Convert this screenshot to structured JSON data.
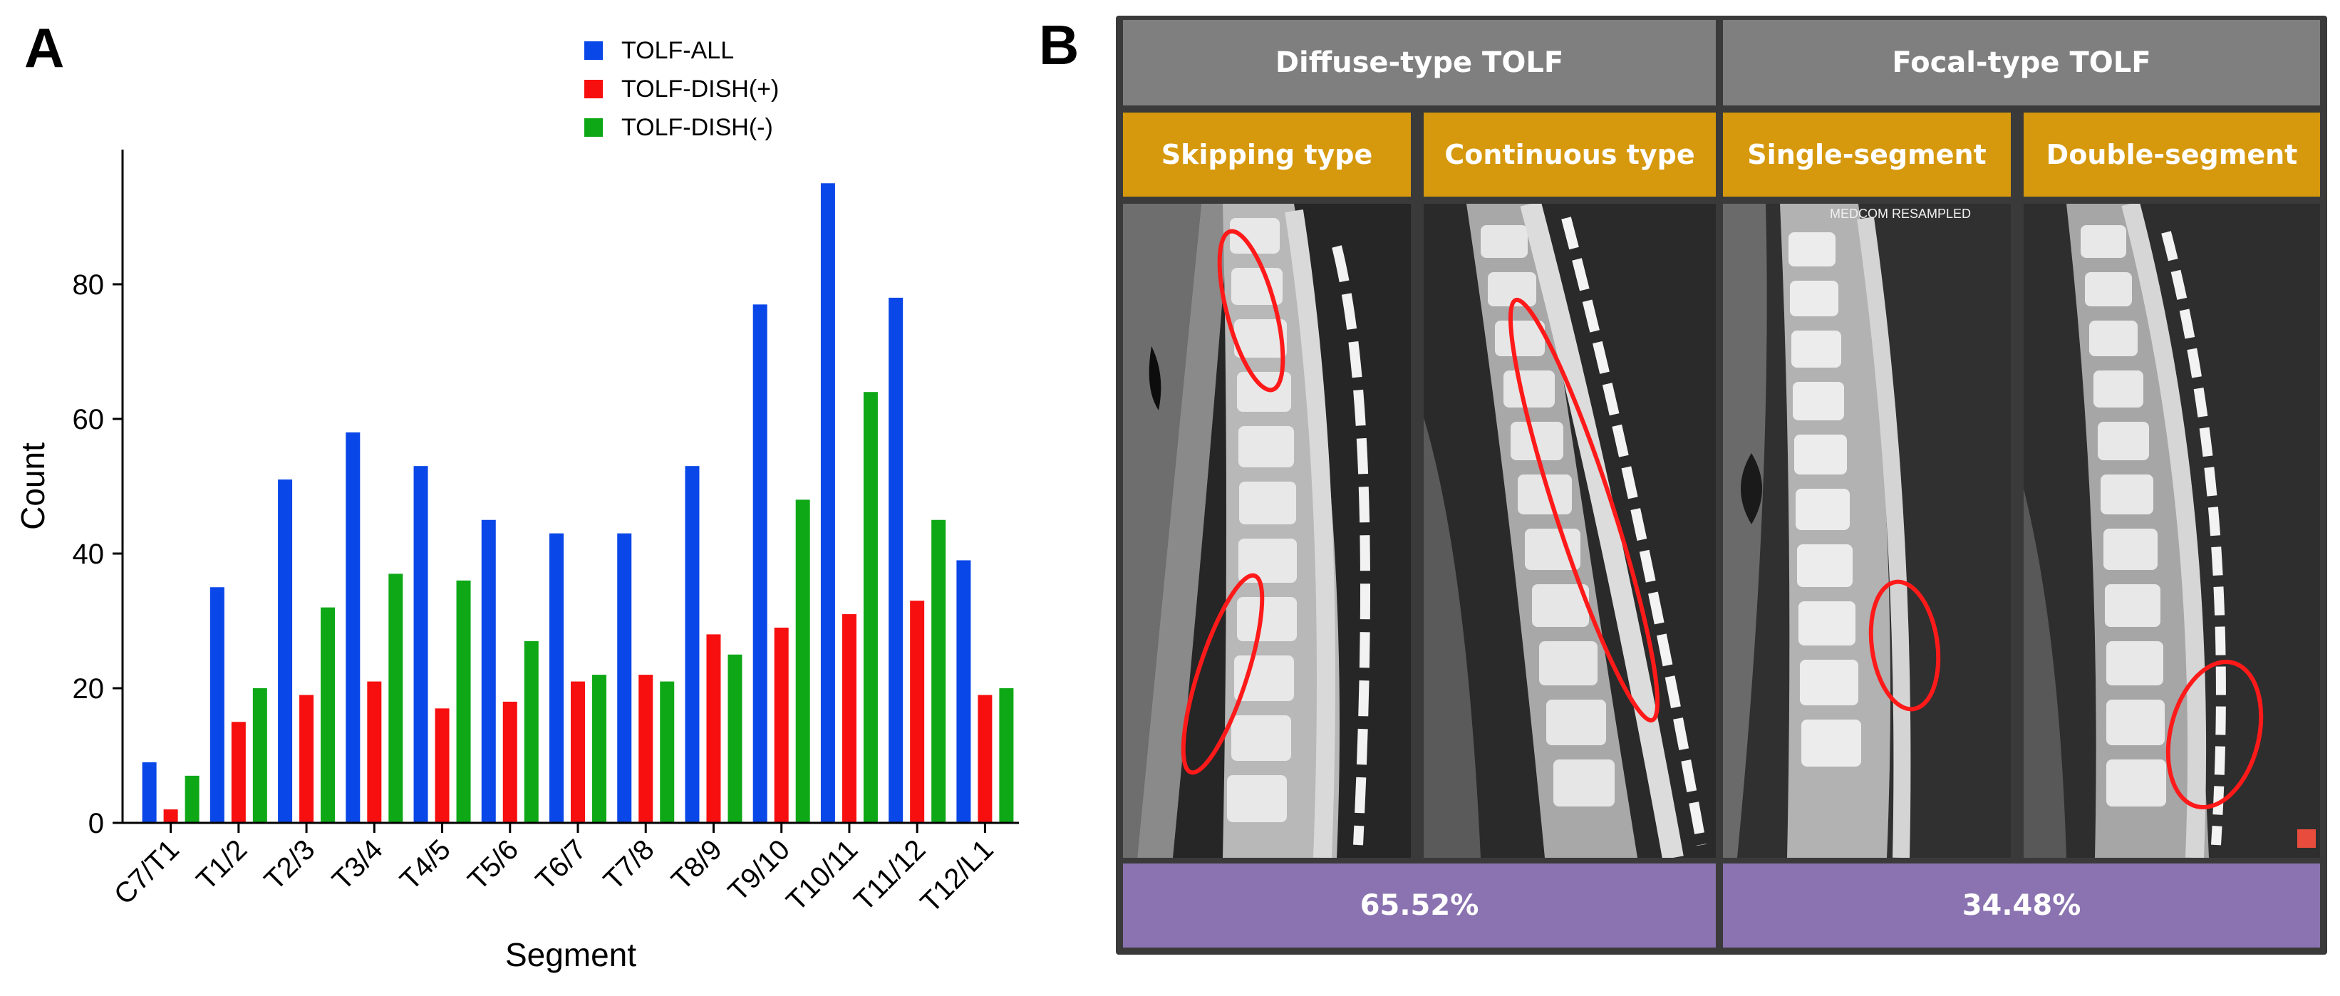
{
  "panel_a_label": "A",
  "panel_b_label": "B",
  "chart_data": {
    "type": "bar",
    "title": "",
    "xlabel": "Segment",
    "ylabel": "Count",
    "ylim": [
      0,
      100
    ],
    "yticks": [
      0,
      20,
      40,
      60,
      80
    ],
    "legend_position": "top-right",
    "categories": [
      "C7/T1",
      "T1/2",
      "T2/3",
      "T3/4",
      "T4/5",
      "T5/6",
      "T6/7",
      "T7/8",
      "T8/9",
      "T9/10",
      "T10/11",
      "T11/12",
      "T12/L1"
    ],
    "series": [
      {
        "name": "TOLF-ALL",
        "color": "#0a47e8",
        "values": [
          9,
          35,
          51,
          58,
          53,
          45,
          43,
          43,
          53,
          77,
          95,
          78,
          39
        ]
      },
      {
        "name": "TOLF-DISH(+)",
        "color": "#f70f0f",
        "values": [
          2,
          15,
          19,
          21,
          17,
          18,
          21,
          22,
          28,
          29,
          31,
          33,
          19
        ]
      },
      {
        "name": "TOLF-DISH(-)",
        "color": "#0ea817",
        "values": [
          7,
          20,
          32,
          37,
          36,
          27,
          22,
          21,
          25,
          48,
          64,
          45,
          20
        ]
      }
    ]
  },
  "panel_b": {
    "groups": [
      {
        "title": "Diffuse-type TOLF",
        "percent": "65.52%"
      },
      {
        "title": "Focal-type TOLF",
        "percent": "34.48%"
      }
    ],
    "subtypes": [
      "Skipping type",
      "Continuous type",
      "Single-segment",
      "Double-segment"
    ],
    "image_caption": "MEDCOM RESAMPLED",
    "colors": {
      "header_gray": "#7f7f7f",
      "subtype_orange": "#d6980c",
      "footer_purple": "#8a73b0",
      "annotation_red": "#ff1a1a"
    }
  }
}
